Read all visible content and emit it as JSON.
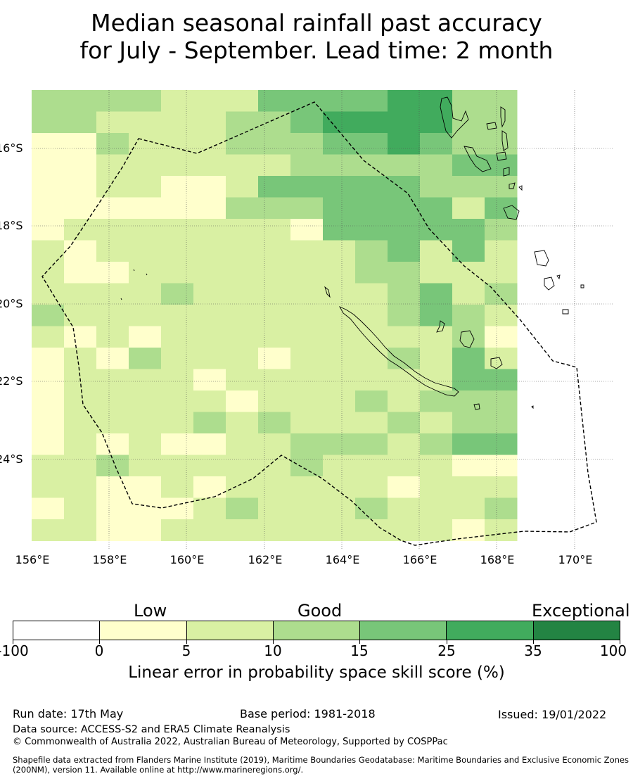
{
  "title_line1": "Median seasonal rainfall past accuracy",
  "title_line2": "for July - September. Lead time: 2 month",
  "map": {
    "lon_labels": [
      "156°E",
      "158°E",
      "160°E",
      "162°E",
      "164°E",
      "166°E",
      "168°E",
      "170°E"
    ],
    "lat_labels": [
      "16°S",
      "18°S",
      "20°S",
      "22°S",
      "24°S"
    ],
    "lon_values": [
      156,
      158,
      160,
      162,
      164,
      166,
      168,
      170
    ],
    "lat_values": [
      -16,
      -18,
      -20,
      -22,
      -24
    ],
    "lon_range": [
      156,
      171
    ],
    "lat_range": [
      -26.5,
      -14.7
    ],
    "grid_rows": [
      "333322244445533",
      "332222334555533",
      "113222333445433",
      "002222223333344",
      "112211244444333",
      "000000333444424",
      "022222221444443",
      "212222222234242",
      "211222222233222",
      "222232222223423",
      "322222222223432",
      "212122222222231",
      "121322212223242",
      "122221222222244",
      "122222122232333",
      "122223232223233",
      "121211223332344",
      "223222223222211",
      "221121222221222",
      "121112322232223",
      "221122222222212"
    ],
    "colors": {
      "0": "#ffffcc",
      "1": "#ffffcc",
      "2": "#d9f0a3",
      "3": "#addd8e",
      "4": "#78c679",
      "5": "#41ab5d",
      "6": "#238443"
    }
  },
  "legend": {
    "categories": [
      "Low",
      "Good",
      "Exceptional"
    ],
    "colors": [
      "#ffffff",
      "#ffffcc",
      "#d9f0a3",
      "#addd8e",
      "#78c679",
      "#41ab5d",
      "#238443"
    ],
    "ticks": [
      "-100",
      "0",
      "5",
      "10",
      "15",
      "25",
      "35",
      "100"
    ],
    "title": "Linear error in probability space skill score (%)"
  },
  "footer": {
    "run_date": "Run date: 17th May",
    "base_period": "Base period: 1981-2018",
    "issued": "Issued: 19/01/2022",
    "data_source": "Data source: ACCESS-S2 and ERA5 Climate Reanalysis",
    "copyright": "© Commonwealth of Australia 2022, Australian Bureau of Meteorology, Supported by COSPPac",
    "shapefile": "Shapefile data extracted from Flanders Marine Institute (2019), Maritime Boundaries Geodatabase: Maritime Boundaries and Exclusive Economic Zones (200NM), version 11. Available online at http://www.marineregions.org/."
  }
}
